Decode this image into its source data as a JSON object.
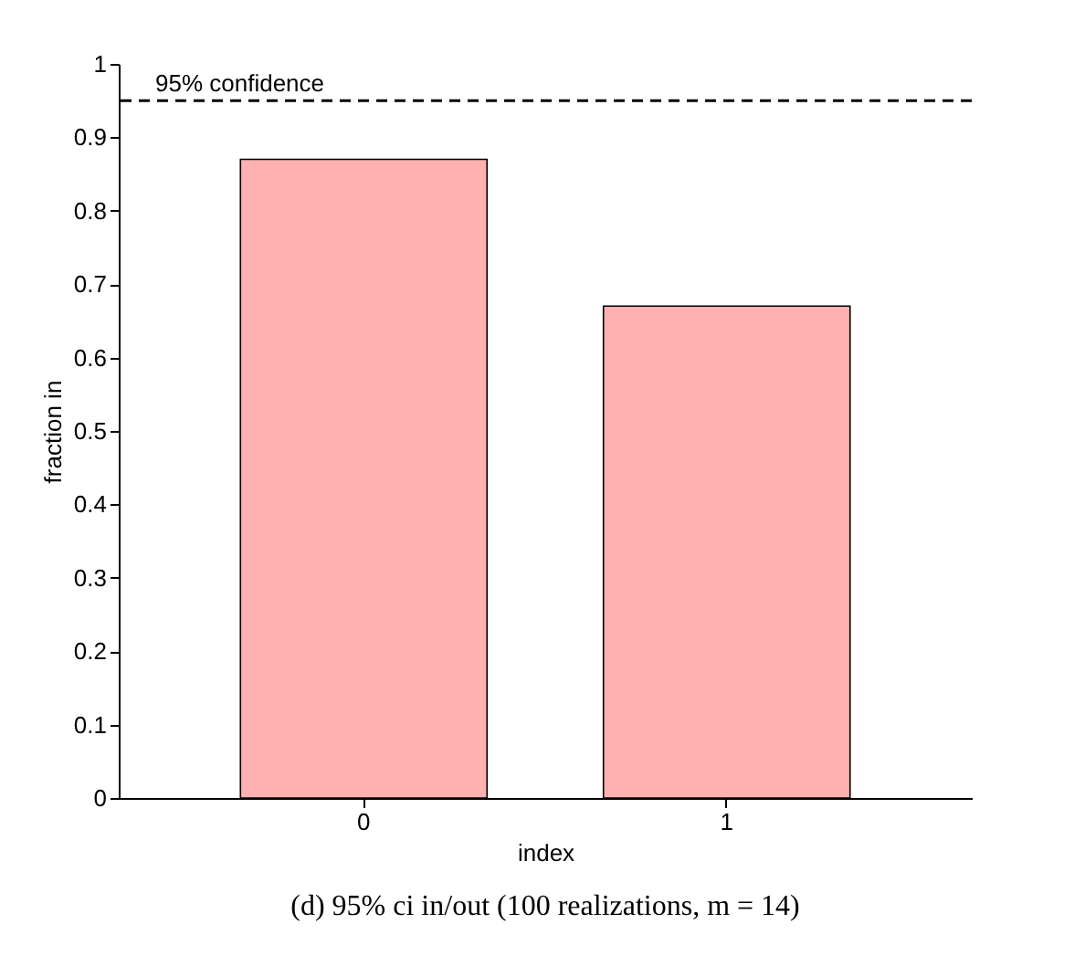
{
  "chart_data": {
    "type": "bar",
    "categories": [
      "0",
      "1"
    ],
    "values": [
      0.87,
      0.67
    ],
    "color": "#ffb0b0",
    "xlabel": "index",
    "ylabel": "fraction in",
    "ylim": [
      0,
      1
    ],
    "yticks": [
      0,
      0.1,
      0.2,
      0.3,
      0.4,
      0.5,
      0.6,
      0.7,
      0.8,
      0.9,
      1
    ],
    "grid": false,
    "ref_lines": [
      {
        "axis": "y",
        "value": 0.95,
        "label": "95% confidence",
        "line_style": "dashed",
        "color": "#000000"
      }
    ],
    "annotations": [
      "(d) 95% ci in/out (100 realizations, m = 14)"
    ]
  }
}
